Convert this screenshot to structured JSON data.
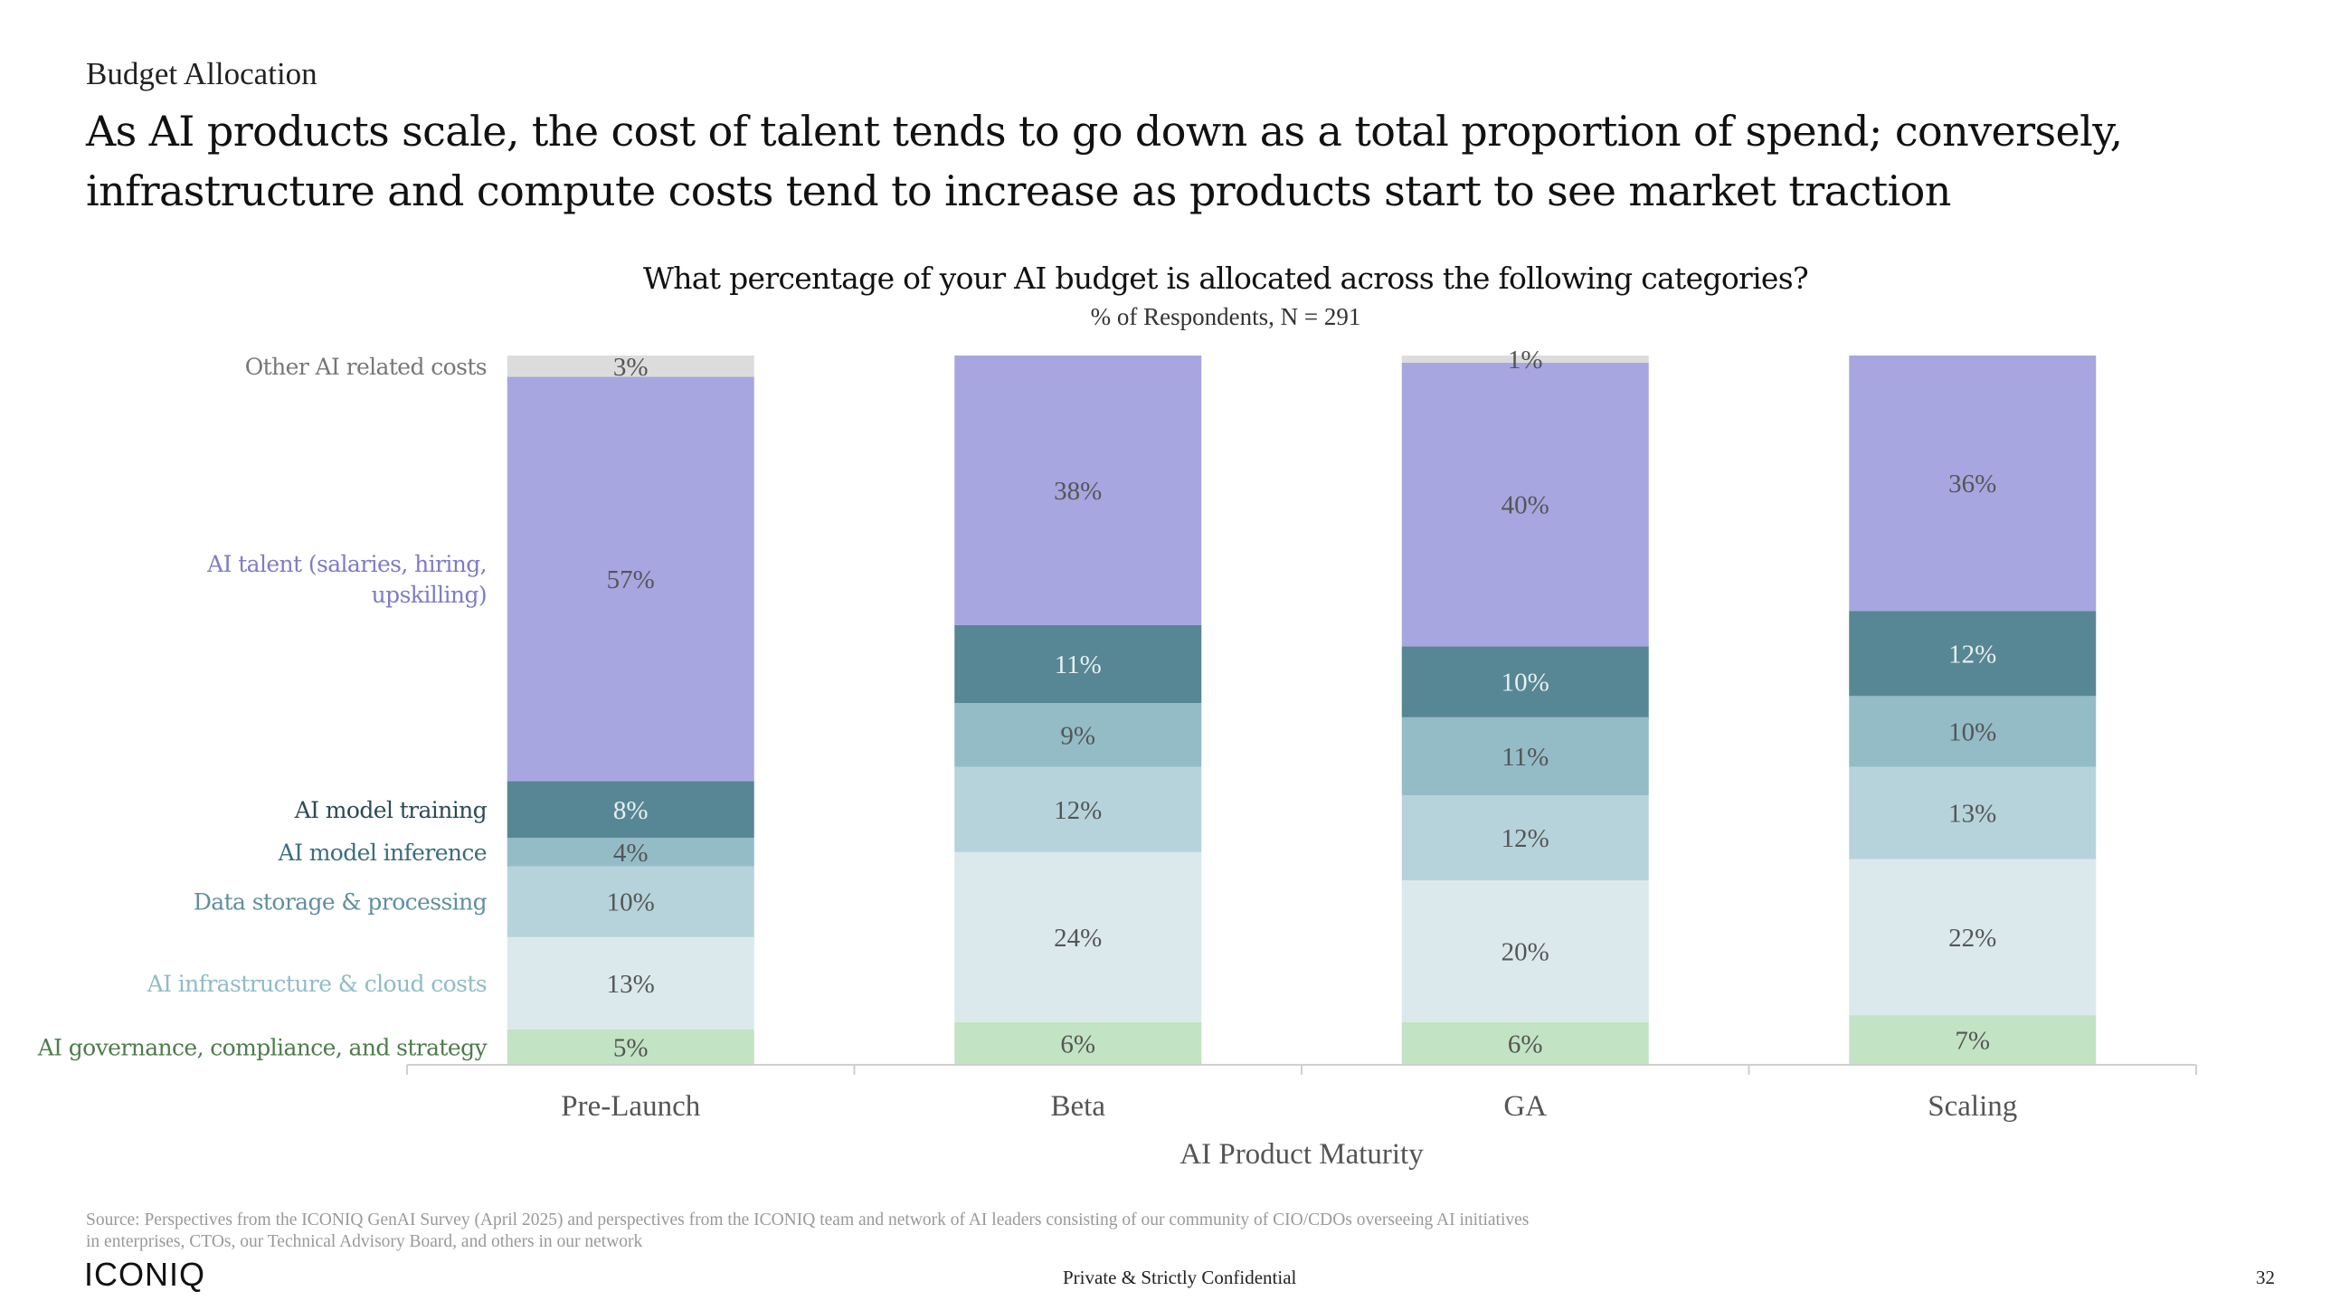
{
  "header": {
    "section": "Budget Allocation",
    "headline": "As AI products scale, the cost of talent tends to go down as a total proportion of spend; conversely, infrastructure and compute costs tend to increase as products start to see market traction"
  },
  "chart_data": {
    "type": "bar",
    "stacked": true,
    "title": "What percentage of your AI budget is allocated across the following categories?",
    "subtitle": "% of Respondents, N = 291",
    "xlabel": "AI Product Maturity",
    "ylabel": "",
    "categories": [
      "Pre-Launch",
      "Beta",
      "GA",
      "Scaling"
    ],
    "value_unit": "%",
    "ylim": [
      0,
      100
    ],
    "grid": false,
    "legend": "left",
    "series": [
      {
        "name": "AI governance, compliance, and strategy",
        "values": [
          5,
          6,
          6,
          7
        ],
        "color": "#c2e3c4",
        "label_color": "#4d7d4a",
        "value_color": "#555555"
      },
      {
        "name": "AI infrastructure & cloud costs",
        "values": [
          13,
          24,
          20,
          22
        ],
        "color": "#dbe9ec",
        "label_color": "#8fbcc8",
        "value_color": "#555555"
      },
      {
        "name": "Data storage & processing",
        "values": [
          10,
          12,
          12,
          13
        ],
        "color": "#b6d3db",
        "label_color": "#5f8fa0",
        "value_color": "#555555"
      },
      {
        "name": "AI model inference",
        "values": [
          4,
          9,
          11,
          10
        ],
        "color": "#93bcc7",
        "label_color": "#3c6c7d",
        "value_color": "#555555"
      },
      {
        "name": "AI model training",
        "values": [
          8,
          11,
          10,
          12
        ],
        "color": "#578794",
        "label_color": "#2b4b55",
        "value_color": "#e8f0f2"
      },
      {
        "name": "AI talent (salaries, hiring, upskilling)",
        "values": [
          57,
          38,
          40,
          36
        ],
        "color": "#a8a6e0",
        "label_color": "#7e7bc9",
        "value_color": "#555555"
      },
      {
        "name": "Other AI related costs",
        "values": [
          3,
          0,
          1,
          0
        ],
        "color": "#dcdcdc",
        "label_color": "#777777",
        "value_color": "#555555"
      }
    ],
    "legend_lines": [
      [
        "AI governance, compliance, and strategy"
      ],
      [
        "AI infrastructure & cloud costs"
      ],
      [
        "Data storage & processing"
      ],
      [
        "AI model inference"
      ],
      [
        "AI model training"
      ],
      [
        "AI talent (salaries, hiring,",
        "upskilling)"
      ],
      [
        "Other AI related costs"
      ]
    ]
  },
  "footer": {
    "source": "Source: Perspectives from the ICONIQ GenAI Survey (April 2025) and perspectives from the ICONIQ team and network of AI leaders consisting of our community of CIO/CDOs overseeing AI initiatives in enterprises, CTOs, our Technical Advisory Board, and others in our network",
    "brand": "ICONIQ",
    "confidential": "Private & Strictly Confidential",
    "page_number": "32"
  }
}
